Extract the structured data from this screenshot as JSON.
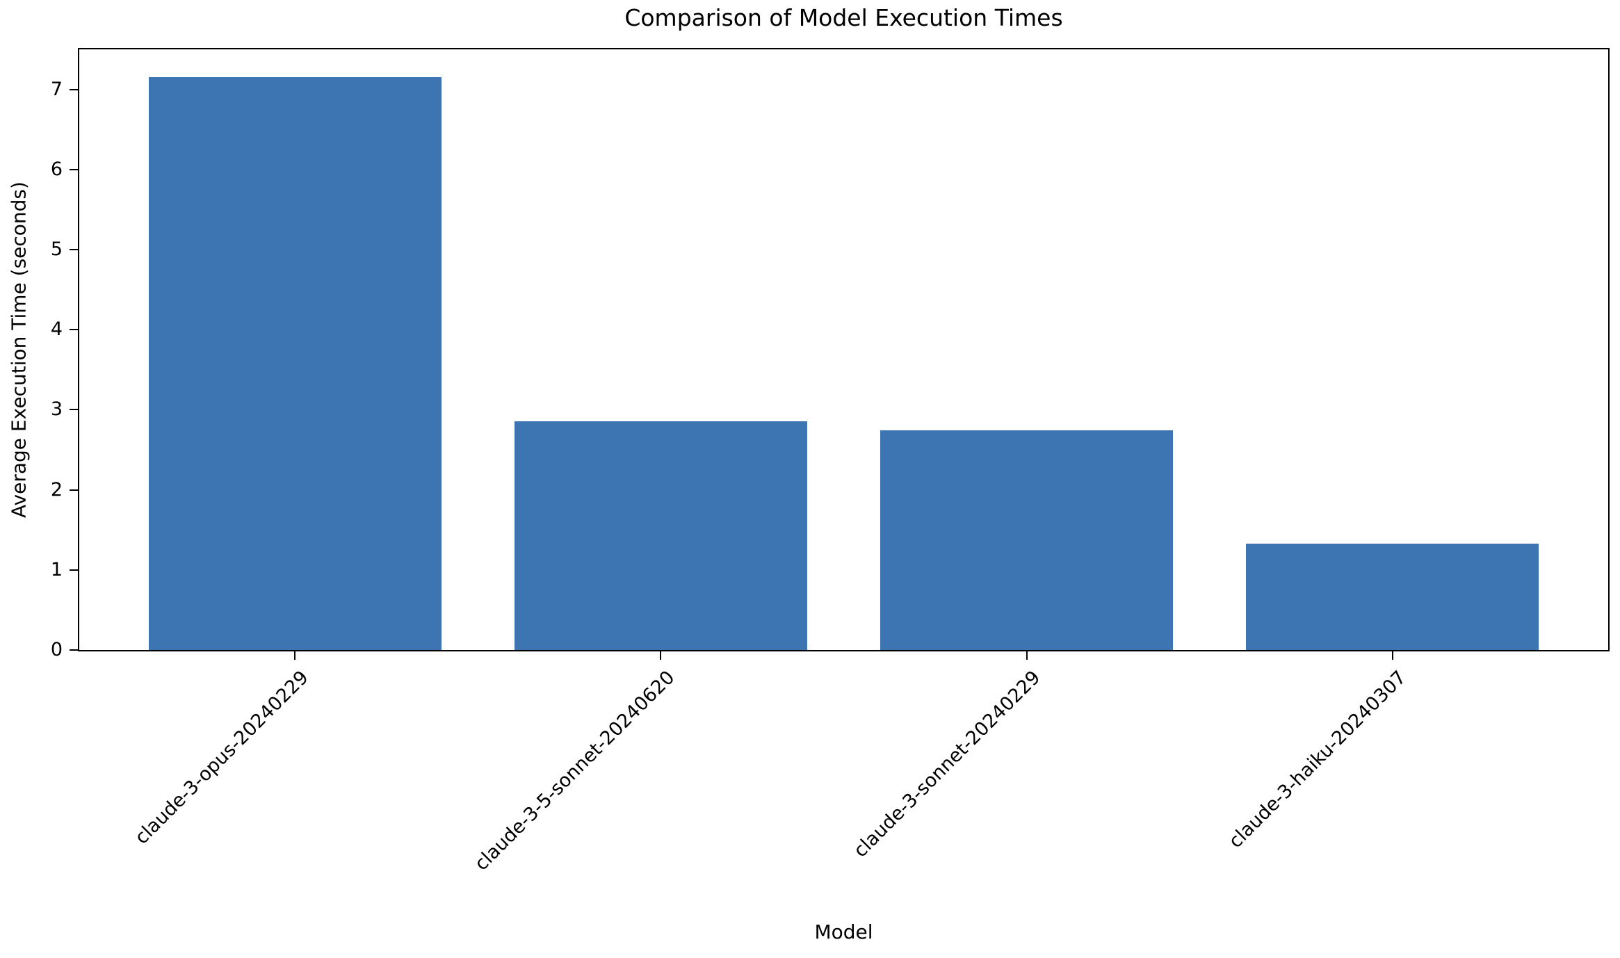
{
  "figure": {
    "background": "#ffffff",
    "text_color": "#000000",
    "spine_color": "#000000"
  },
  "chart_data": {
    "type": "bar",
    "title": "Comparison of Model Execution Times",
    "xlabel": "Model",
    "ylabel": "Average Execution Time (seconds)",
    "categories": [
      "claude-3-opus-20240229",
      "claude-3-5-sonnet-20240620",
      "claude-3-sonnet-20240229",
      "claude-3-haiku-20240307"
    ],
    "values": [
      7.15,
      2.86,
      2.74,
      1.33
    ],
    "bar_color": "#3c75b2",
    "bar_width_ratio": 0.8,
    "yticks": [
      0,
      1,
      2,
      3,
      4,
      5,
      6,
      7
    ],
    "ylim": [
      0,
      7.5
    ],
    "xlim": [
      -0.59,
      3.59
    ],
    "grid": false,
    "legend_position": "none",
    "x_tick_label_rotation_deg": 45
  }
}
